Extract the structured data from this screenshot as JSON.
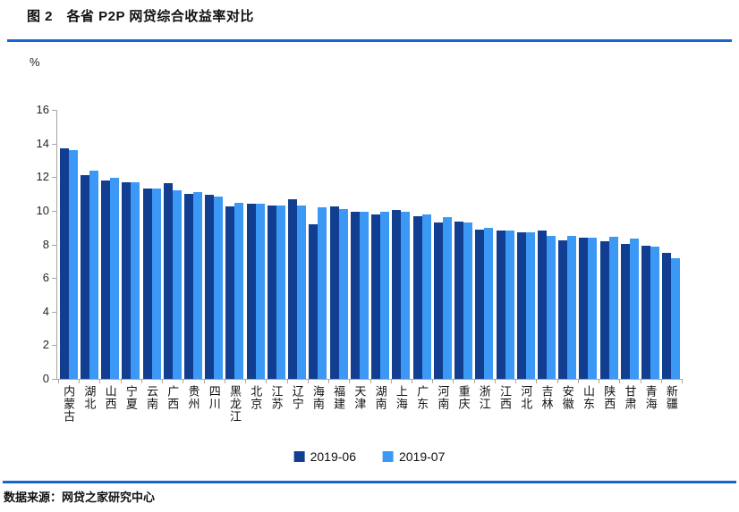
{
  "figure": {
    "title": "图 2　各省 P2P 网贷综合收益率对比",
    "unit_label": "%",
    "source": "数据来源：网贷之家研究中心"
  },
  "colors": {
    "series_dark": "#123E91",
    "series_light": "#3C98F5",
    "rule_blue": "#1565D2",
    "axis_gray": "#A6A6A6"
  },
  "chart_data": {
    "type": "bar",
    "title": "各省P2P网贷综合收益率对比",
    "xlabel": "",
    "ylabel": "%",
    "ylim": [
      0,
      16
    ],
    "yticks": [
      0,
      2,
      4,
      6,
      8,
      10,
      12,
      14,
      16
    ],
    "grid": false,
    "legend_position": "bottom",
    "categories": [
      "内蒙古",
      "湖北",
      "山西",
      "宁夏",
      "云南",
      "广西",
      "贵州",
      "四川",
      "黑龙江",
      "北京",
      "江苏",
      "辽宁",
      "海南",
      "福建",
      "天津",
      "湖南",
      "上海",
      "广东",
      "河南",
      "重庆",
      "浙江",
      "江西",
      "河北",
      "吉林",
      "安徽",
      "山东",
      "陕西",
      "甘肃",
      "青海",
      "新疆"
    ],
    "series": [
      {
        "name": "2019-06",
        "color": "#123E91",
        "values": [
          13.7,
          12.1,
          11.8,
          11.7,
          11.35,
          11.65,
          11.0,
          10.95,
          10.25,
          10.4,
          10.3,
          10.7,
          9.2,
          10.25,
          9.95,
          9.8,
          10.05,
          9.7,
          9.3,
          9.35,
          8.9,
          8.85,
          8.7,
          8.8,
          8.25,
          8.4,
          8.2,
          8.05,
          7.9,
          7.5
        ]
      },
      {
        "name": "2019-07",
        "color": "#3C98F5",
        "values": [
          13.6,
          12.4,
          11.95,
          11.7,
          11.35,
          11.2,
          11.1,
          10.85,
          10.5,
          10.4,
          10.3,
          10.3,
          10.2,
          10.1,
          9.95,
          9.95,
          9.95,
          9.8,
          9.65,
          9.3,
          9.0,
          8.85,
          8.7,
          8.5,
          8.5,
          8.4,
          8.45,
          8.35,
          7.85,
          7.2
        ]
      }
    ]
  }
}
